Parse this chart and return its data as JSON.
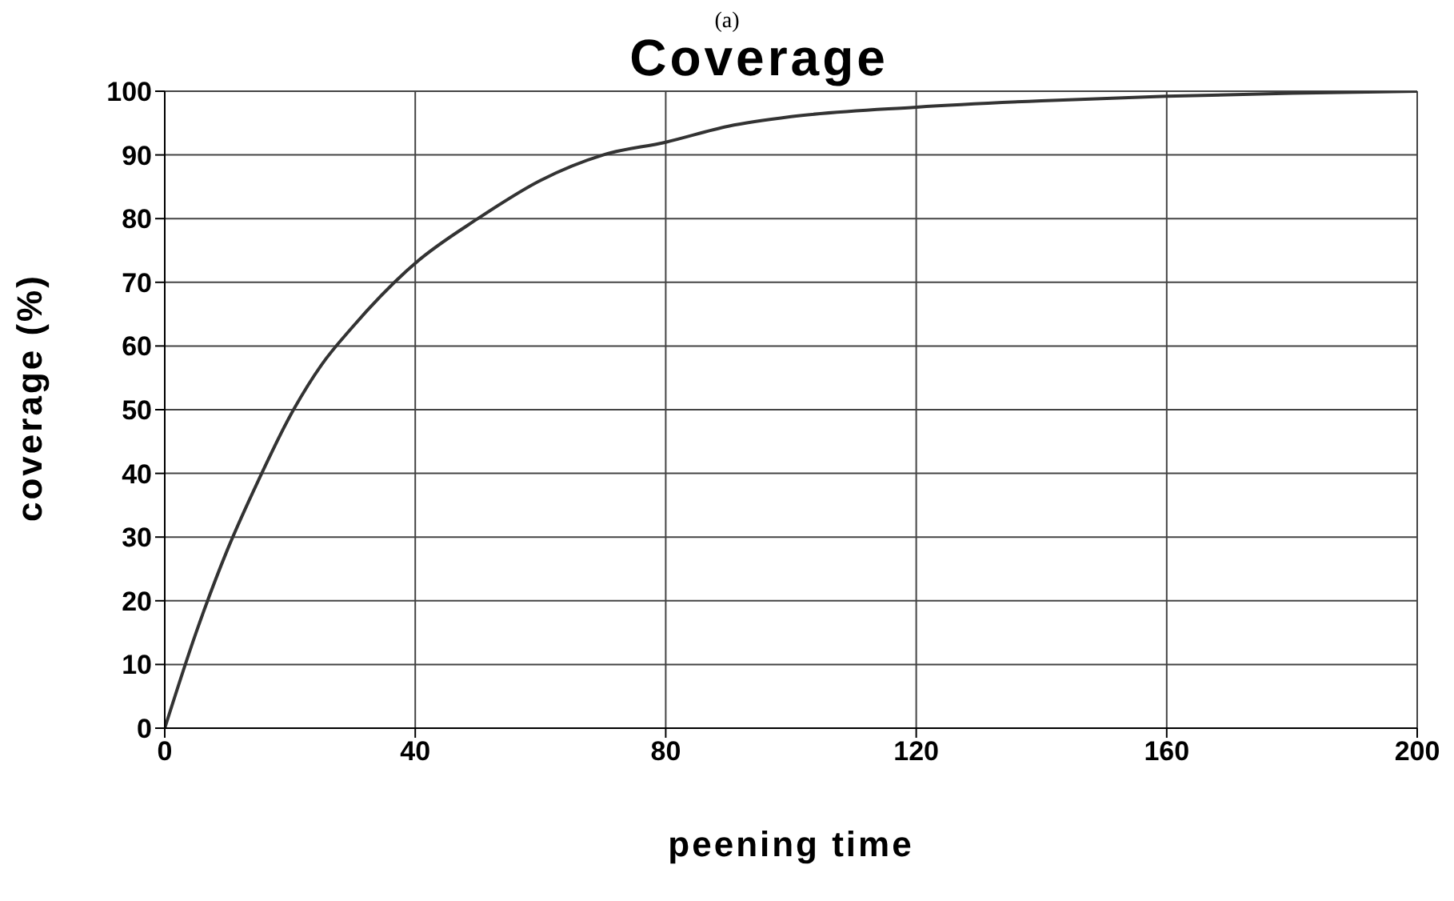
{
  "chart_data": {
    "type": "line",
    "title": "Coverage",
    "annotations": [
      "(a)"
    ],
    "xlabel": "peening time",
    "ylabel": "coverage (%)",
    "x": [
      0,
      5,
      10,
      15,
      20,
      25,
      30,
      40,
      50,
      60,
      70,
      80,
      90,
      100,
      120,
      140,
      160,
      180,
      200
    ],
    "series": [
      {
        "color": "#333333",
        "values": [
          0,
          15,
          28,
          39,
          49,
          57,
          63,
          73,
          80,
          86,
          90,
          92,
          94.5,
          96,
          97.5,
          98.5,
          99.2,
          99.7,
          100
        ]
      }
    ],
    "xlim": [
      0,
      200
    ],
    "xticks": [
      0,
      40,
      80,
      120,
      160,
      200
    ],
    "ylim": [
      0,
      100
    ],
    "yticks": [
      0,
      10,
      20,
      30,
      40,
      50,
      60,
      70,
      80,
      90,
      100
    ],
    "grid": true,
    "legend": false,
    "marker": "none",
    "line_style": "solid"
  }
}
